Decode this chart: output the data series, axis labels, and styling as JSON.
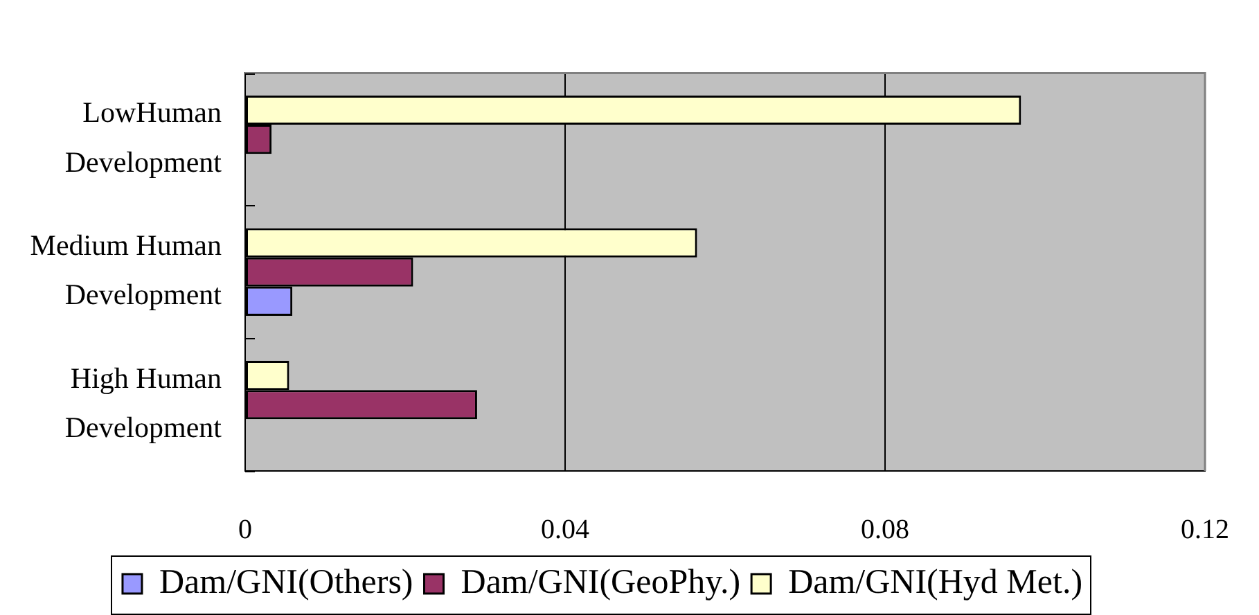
{
  "chart_data": {
    "type": "bar",
    "orientation": "horizontal",
    "categories": [
      "LowHuman Development",
      "Medium Human Development",
      "High Human Development"
    ],
    "series": [
      {
        "name": "Dam/GNI(Others)",
        "color": "#9999ff",
        "values": [
          null,
          0.0059,
          null
        ]
      },
      {
        "name": "Dam/GNI(GeoPhy.)",
        "color": "#993366",
        "values": [
          0.0033,
          0.021,
          0.029
        ]
      },
      {
        "name": "Dam/GNI(Hyd Met.)",
        "color": "#ffffcc",
        "values": [
          0.097,
          0.0565,
          0.0055
        ]
      }
    ],
    "xlim": [
      0,
      0.12
    ],
    "xticks": [
      0,
      0.04,
      0.08,
      0.12
    ],
    "grid": "x",
    "legend": "bottom"
  }
}
